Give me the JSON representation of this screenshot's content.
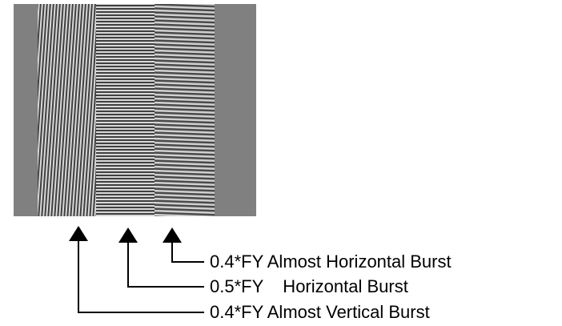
{
  "annotations": [
    {
      "label": "0.4*FY Almost Horizontal Burst"
    },
    {
      "label": "0.5*FY    Horizontal Burst"
    },
    {
      "label": "0.4*FY Almost Vertical Burst"
    }
  ]
}
